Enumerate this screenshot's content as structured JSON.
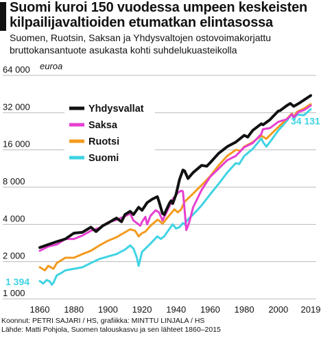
{
  "header": {
    "title": "Suomi kuroi 150 vuodessa umpeen keskeisten kilpailijavaltioiden etumatkan elintasossa",
    "subtitle": "Suomen, Ruotsin, Saksan ja Yhdysvaltojen ostovoimakorjattu bruttokansantuote asukasta kohti suhdelukuasteikolla"
  },
  "footer": {
    "credits": "Koonnut: PETRI SAJARI / HS, grafiikka: MINTTU LINJALA / HS",
    "source": "Lähde: Matti Pohjola, Suomen talouskasvu ja sen lähteet 1860–2015"
  },
  "chart_data": {
    "type": "line",
    "ylabel": "euroa",
    "yscale": "log2",
    "ylim": [
      1000,
      64000
    ],
    "xlim": [
      1860,
      2019
    ],
    "y_ticks": [
      1000,
      2000,
      4000,
      8000,
      16000,
      32000,
      64000
    ],
    "y_tick_labels": [
      "1 000",
      "2 000",
      "4 000",
      "8 000",
      "16 000",
      "32 000",
      "64 000"
    ],
    "x_ticks": [
      1860,
      1880,
      1900,
      1920,
      1940,
      1960,
      1980,
      2000,
      2019
    ],
    "x_tick_labels": [
      "1860",
      "1880",
      "1900",
      "1920",
      "1940",
      "1960",
      "1980",
      "2000",
      "2019"
    ],
    "grid": "horizontal",
    "legend_position": "top-left",
    "annotations": [
      {
        "text": "1 394",
        "series": "Suomi",
        "x": 1860,
        "color": "#3fd3e3"
      },
      {
        "text": "34 131",
        "series": "Suomi",
        "x": 2019,
        "color": "#3fd3e3"
      }
    ],
    "series": [
      {
        "name": "Yhdysvallat",
        "color": "#111111",
        "points": [
          [
            1860,
            2600
          ],
          [
            1865,
            2750
          ],
          [
            1870,
            2900
          ],
          [
            1875,
            3050
          ],
          [
            1880,
            3400
          ],
          [
            1885,
            3450
          ],
          [
            1890,
            3800
          ],
          [
            1893,
            3500
          ],
          [
            1897,
            3900
          ],
          [
            1900,
            4100
          ],
          [
            1905,
            4500
          ],
          [
            1908,
            4200
          ],
          [
            1910,
            4800
          ],
          [
            1913,
            5100
          ],
          [
            1915,
            4800
          ],
          [
            1918,
            5500
          ],
          [
            1920,
            5200
          ],
          [
            1923,
            6000
          ],
          [
            1926,
            6400
          ],
          [
            1929,
            6700
          ],
          [
            1930,
            6100
          ],
          [
            1932,
            4900
          ],
          [
            1933,
            4800
          ],
          [
            1936,
            5900
          ],
          [
            1937,
            6200
          ],
          [
            1938,
            5900
          ],
          [
            1940,
            7000
          ],
          [
            1942,
            9200
          ],
          [
            1944,
            11000
          ],
          [
            1945,
            10800
          ],
          [
            1947,
            9400
          ],
          [
            1950,
            10500
          ],
          [
            1955,
            12000
          ],
          [
            1958,
            11800
          ],
          [
            1960,
            12600
          ],
          [
            1965,
            15000
          ],
          [
            1970,
            17000
          ],
          [
            1975,
            18500
          ],
          [
            1980,
            21000
          ],
          [
            1982,
            20300
          ],
          [
            1985,
            23000
          ],
          [
            1990,
            26000
          ],
          [
            1991,
            25500
          ],
          [
            1995,
            28000
          ],
          [
            2000,
            33000
          ],
          [
            2001,
            33200
          ],
          [
            2005,
            36500
          ],
          [
            2007,
            38000
          ],
          [
            2009,
            36000
          ],
          [
            2012,
            38000
          ],
          [
            2015,
            40500
          ],
          [
            2019,
            44000
          ]
        ]
      },
      {
        "name": "Saksa",
        "color": "#e63fd0",
        "points": [
          [
            1860,
            2450
          ],
          [
            1865,
            2650
          ],
          [
            1870,
            2750
          ],
          [
            1875,
            3050
          ],
          [
            1880,
            3050
          ],
          [
            1885,
            3250
          ],
          [
            1890,
            3550
          ],
          [
            1895,
            3750
          ],
          [
            1900,
            4150
          ],
          [
            1905,
            4350
          ],
          [
            1910,
            4650
          ],
          [
            1913,
            4900
          ],
          [
            1915,
            4300
          ],
          [
            1917,
            4100
          ],
          [
            1919,
            3900
          ],
          [
            1920,
            4200
          ],
          [
            1922,
            4600
          ],
          [
            1923,
            4000
          ],
          [
            1925,
            4700
          ],
          [
            1928,
            5200
          ],
          [
            1930,
            5000
          ],
          [
            1932,
            4300
          ],
          [
            1935,
            5200
          ],
          [
            1938,
            6400
          ],
          [
            1941,
            7200
          ],
          [
            1943,
            7500
          ],
          [
            1944,
            7400
          ],
          [
            1945,
            5200
          ],
          [
            1946,
            3600
          ],
          [
            1947,
            3900
          ],
          [
            1948,
            4300
          ],
          [
            1950,
            5500
          ],
          [
            1955,
            7600
          ],
          [
            1960,
            9700
          ],
          [
            1965,
            11300
          ],
          [
            1970,
            13200
          ],
          [
            1975,
            14300
          ],
          [
            1980,
            16800
          ],
          [
            1985,
            18200
          ],
          [
            1990,
            21500
          ],
          [
            1991,
            23500
          ],
          [
            1995,
            24000
          ],
          [
            2000,
            27000
          ],
          [
            2005,
            28300
          ],
          [
            2008,
            31000
          ],
          [
            2009,
            29300
          ],
          [
            2012,
            32500
          ],
          [
            2015,
            33500
          ],
          [
            2019,
            36500
          ]
        ]
      },
      {
        "name": "Ruotsi",
        "color": "#f39a1d",
        "points": [
          [
            1860,
            1800
          ],
          [
            1863,
            1700
          ],
          [
            1865,
            1850
          ],
          [
            1868,
            1750
          ],
          [
            1870,
            1950
          ],
          [
            1875,
            2150
          ],
          [
            1880,
            2150
          ],
          [
            1885,
            2300
          ],
          [
            1890,
            2450
          ],
          [
            1895,
            2700
          ],
          [
            1900,
            2950
          ],
          [
            1905,
            3150
          ],
          [
            1910,
            3450
          ],
          [
            1913,
            3650
          ],
          [
            1916,
            3550
          ],
          [
            1918,
            3200
          ],
          [
            1920,
            3400
          ],
          [
            1922,
            3500
          ],
          [
            1925,
            3900
          ],
          [
            1929,
            4350
          ],
          [
            1930,
            4300
          ],
          [
            1932,
            4050
          ],
          [
            1935,
            4550
          ],
          [
            1939,
            5300
          ],
          [
            1941,
            5000
          ],
          [
            1943,
            5300
          ],
          [
            1945,
            6100
          ],
          [
            1950,
            7100
          ],
          [
            1955,
            8300
          ],
          [
            1960,
            9800
          ],
          [
            1965,
            12000
          ],
          [
            1970,
            14300
          ],
          [
            1975,
            16000
          ],
          [
            1978,
            15800
          ],
          [
            1980,
            17000
          ],
          [
            1985,
            18500
          ],
          [
            1990,
            20800
          ],
          [
            1993,
            19700
          ],
          [
            1995,
            21000
          ],
          [
            2000,
            24500
          ],
          [
            2005,
            28500
          ],
          [
            2008,
            31500
          ],
          [
            2009,
            29500
          ],
          [
            2011,
            32500
          ],
          [
            2015,
            34500
          ],
          [
            2019,
            37500
          ]
        ]
      },
      {
        "name": "Suomi",
        "color": "#3fd3e3",
        "points": [
          [
            1860,
            1394
          ],
          [
            1862,
            1330
          ],
          [
            1864,
            1420
          ],
          [
            1866,
            1380
          ],
          [
            1867,
            1300
          ],
          [
            1868,
            1350
          ],
          [
            1870,
            1550
          ],
          [
            1872,
            1600
          ],
          [
            1875,
            1700
          ],
          [
            1880,
            1750
          ],
          [
            1885,
            1800
          ],
          [
            1890,
            1950
          ],
          [
            1895,
            2100
          ],
          [
            1900,
            2200
          ],
          [
            1905,
            2300
          ],
          [
            1910,
            2500
          ],
          [
            1913,
            2700
          ],
          [
            1915,
            2550
          ],
          [
            1917,
            2150
          ],
          [
            1918,
            1850
          ],
          [
            1919,
            2100
          ],
          [
            1920,
            2400
          ],
          [
            1925,
            2800
          ],
          [
            1929,
            3200
          ],
          [
            1931,
            3050
          ],
          [
            1933,
            3200
          ],
          [
            1935,
            3500
          ],
          [
            1938,
            4000
          ],
          [
            1940,
            3700
          ],
          [
            1942,
            3800
          ],
          [
            1944,
            4100
          ],
          [
            1945,
            4000
          ],
          [
            1947,
            4400
          ],
          [
            1950,
            4800
          ],
          [
            1955,
            5700
          ],
          [
            1960,
            7000
          ],
          [
            1965,
            8500
          ],
          [
            1970,
            10500
          ],
          [
            1975,
            12500
          ],
          [
            1977,
            12300
          ],
          [
            1980,
            14300
          ],
          [
            1985,
            16300
          ],
          [
            1990,
            19800
          ],
          [
            1991,
            18500
          ],
          [
            1993,
            17000
          ],
          [
            1995,
            18500
          ],
          [
            2000,
            23000
          ],
          [
            2005,
            27500
          ],
          [
            2008,
            31500
          ],
          [
            2009,
            28500
          ],
          [
            2011,
            30800
          ],
          [
            2015,
            30500
          ],
          [
            2019,
            34131
          ]
        ]
      }
    ]
  }
}
